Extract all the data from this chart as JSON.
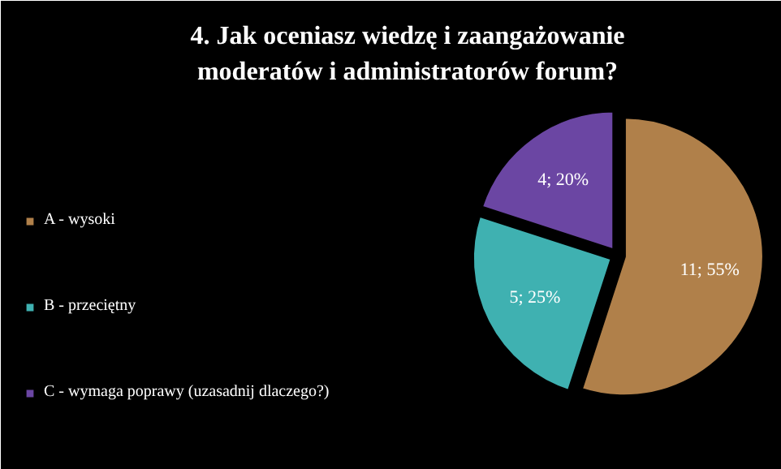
{
  "chart_data": {
    "type": "pie",
    "title": "4. Jak oceniasz wiedzę i zaangażowanie moderatów i administratorów forum?",
    "categories": [
      "A - wysoki",
      "B - przeciętny",
      "C - wymaga poprawy (uzasadnij dlaczego?)"
    ],
    "values": [
      11,
      5,
      4
    ],
    "colors": [
      "#b0804a",
      "#3fb1b1",
      "#6b46a3"
    ],
    "value_labels": [
      "11; 55%",
      "5; 25%",
      "4; 20%"
    ],
    "legend": "left"
  }
}
